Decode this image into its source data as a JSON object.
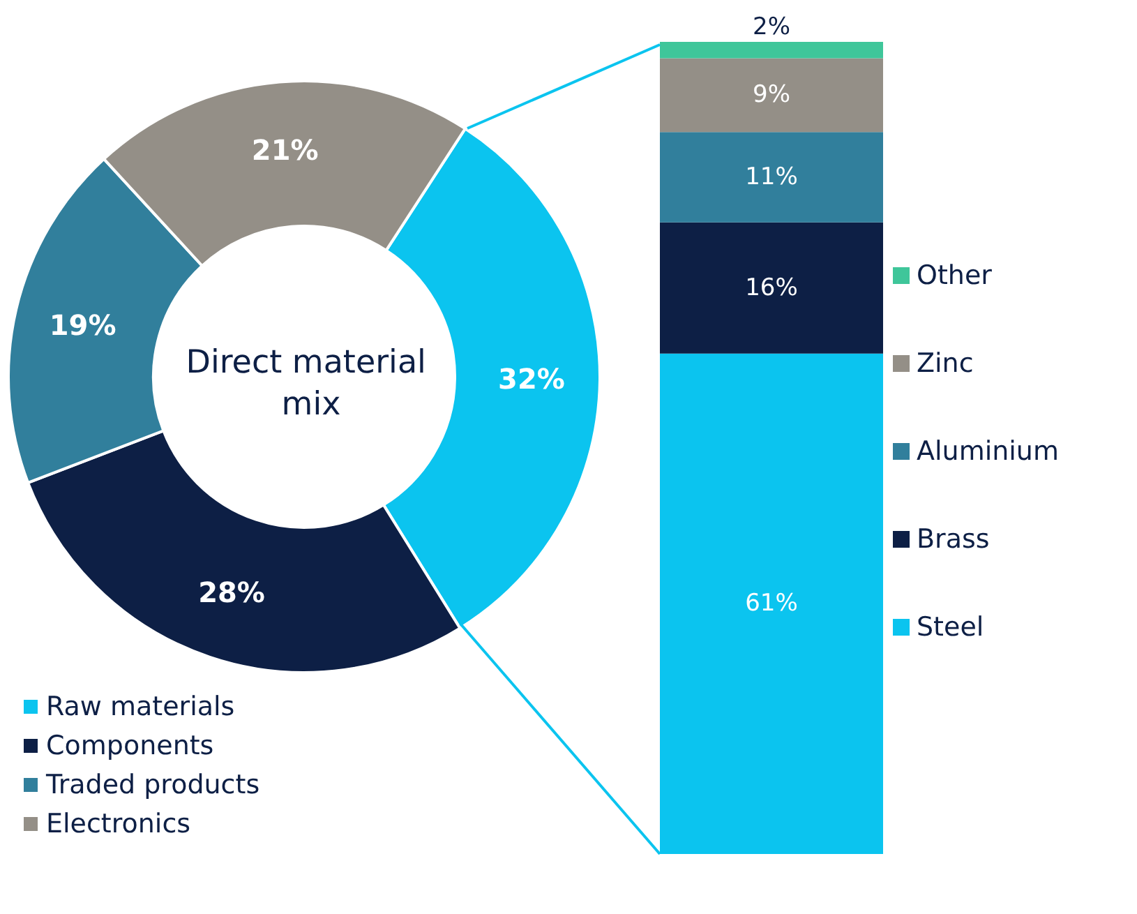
{
  "chart_data": [
    {
      "type": "donut",
      "title": "Direct material mix",
      "categories": [
        "Raw materials",
        "Components",
        "Traded products",
        "Electronics"
      ],
      "values": [
        32,
        28,
        19,
        21
      ],
      "colors": [
        "#0bc4ef",
        "#0d1f45",
        "#317f9c",
        "#948f87"
      ],
      "value_labels": [
        "32%",
        "28%",
        "19%",
        "21%"
      ],
      "legend": "bottom left"
    },
    {
      "type": "bar",
      "stacked": true,
      "categories": [
        null
      ],
      "legend": "right",
      "series": [
        {
          "name": "Steel",
          "color": "#0bc4ef",
          "values": [
            61
          ],
          "value_labels": [
            "61%"
          ]
        },
        {
          "name": "Brass",
          "color": "#0d1f45",
          "values": [
            16
          ],
          "value_labels": [
            "16%"
          ]
        },
        {
          "name": "Aluminium",
          "color": "#317f9c",
          "values": [
            11
          ],
          "value_labels": [
            "11%"
          ]
        },
        {
          "name": "Zinc",
          "color": "#948f87",
          "values": [
            9
          ],
          "value_labels": [
            "9%"
          ]
        },
        {
          "name": "Other",
          "color": "#3fc69a",
          "values": [
            2
          ],
          "value_labels": [
            "2%"
          ]
        }
      ]
    }
  ]
}
